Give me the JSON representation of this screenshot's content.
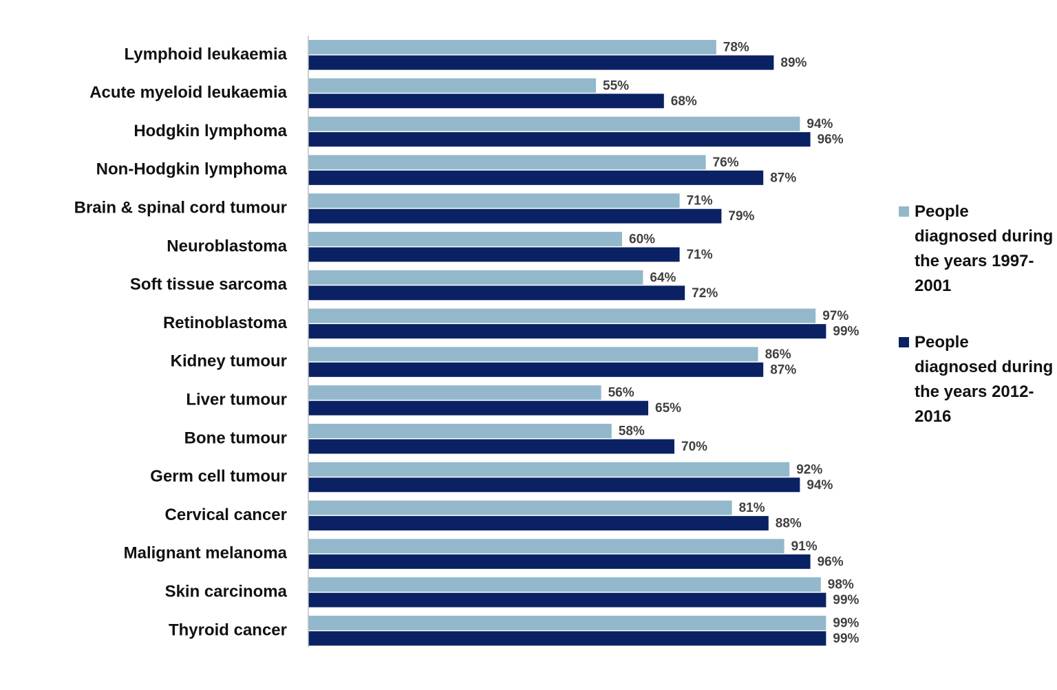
{
  "chart_data": {
    "type": "bar",
    "orientation": "horizontal",
    "categories": [
      "Lymphoid leukaemia",
      "Acute myeloid leukaemia",
      "Hodgkin lymphoma",
      "Non-Hodgkin lymphoma",
      "Brain & spinal cord tumour",
      "Neuroblastoma",
      "Soft tissue sarcoma",
      "Retinoblastoma",
      "Kidney tumour",
      "Liver tumour",
      "Bone tumour",
      "Germ cell tumour",
      "Cervical cancer",
      "Malignant melanoma",
      "Skin carcinoma",
      "Thyroid cancer"
    ],
    "series": [
      {
        "name": "People diagnosed during the years 1997-2001",
        "color": "#93b8cb",
        "values": [
          78,
          55,
          94,
          76,
          71,
          60,
          64,
          97,
          86,
          56,
          58,
          92,
          81,
          91,
          98,
          99
        ],
        "value_labels": [
          "78%",
          "55%",
          "94%",
          "76%",
          "71%",
          "60%",
          "64%",
          "97%",
          "86%",
          "56%",
          "58%",
          "92%",
          "81%",
          "91%",
          "98%",
          "99%"
        ]
      },
      {
        "name": "People diagnosed during the years 2012-2016",
        "color": "#0a2263",
        "values": [
          89,
          68,
          96,
          87,
          79,
          71,
          72,
          99,
          87,
          65,
          70,
          94,
          88,
          96,
          99,
          99
        ],
        "value_labels": [
          "89%",
          "68%",
          "96%",
          "87%",
          "79%",
          "71%",
          "72%",
          "99%",
          "87%",
          "65%",
          "70%",
          "94%",
          "88%",
          "96%",
          "99%",
          "99%"
        ]
      }
    ],
    "legend": "right"
  }
}
